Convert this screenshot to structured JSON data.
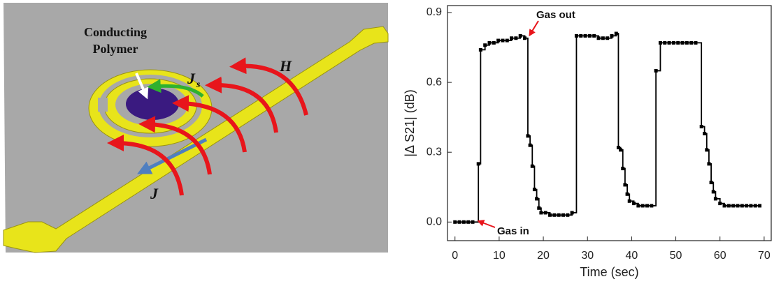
{
  "diagram": {
    "polymer_label": [
      "Conducting",
      "Polymer"
    ],
    "js_label": "J",
    "js_subscript": "s",
    "h_label": "H",
    "j_label": "J"
  },
  "chart_data": {
    "type": "line",
    "x_label": "Time (sec)",
    "y_label": "|Δ S21| (dB)",
    "annotations": [
      "Gas out",
      "Gas in"
    ],
    "xlim": [
      -1.7,
      71.6
    ],
    "xticks": [
      0,
      10,
      20,
      30,
      40,
      50,
      60,
      70
    ],
    "ylim": [
      -0.08,
      0.93
    ],
    "yticks": [
      {
        "value": 0,
        "label": "0.0"
      },
      0.3,
      0.6,
      0.9
    ],
    "series": [
      {
        "color": "#000000",
        "x": [
          0,
          1,
          2,
          3,
          4,
          5.3,
          5.8,
          6.8,
          7.8,
          8.8,
          9.8,
          10.8,
          11.8,
          12.8,
          13.8,
          14.8,
          15.8,
          16.5,
          17,
          17.5,
          18,
          18.5,
          19,
          19.5,
          20.5,
          21.5,
          22.5,
          23.5,
          24.5,
          25.5,
          26.5,
          27.5,
          28.5,
          29.5,
          30.5,
          31.5,
          32.5,
          33.5,
          34.5,
          35.5,
          36.5,
          37,
          37.5,
          38,
          38.5,
          39,
          39.5,
          40.5,
          41.5,
          42.5,
          43.5,
          44.5,
          45.5,
          46.5,
          47.5,
          48.5,
          49.5,
          50.5,
          51.5,
          52.5,
          53.5,
          54.5,
          55.8,
          56.5,
          57,
          57.5,
          58,
          58.5,
          59,
          60,
          61,
          62,
          63,
          64,
          65,
          66,
          67,
          68,
          69
        ],
        "values": [
          0,
          0,
          0,
          0,
          0,
          0.25,
          0.74,
          0.76,
          0.77,
          0.77,
          0.78,
          0.78,
          0.78,
          0.79,
          0.79,
          0.8,
          0.79,
          0.37,
          0.33,
          0.24,
          0.14,
          0.1,
          0.06,
          0.04,
          0.04,
          0.03,
          0.03,
          0.03,
          0.03,
          0.03,
          0.04,
          0.8,
          0.8,
          0.8,
          0.8,
          0.8,
          0.79,
          0.79,
          0.79,
          0.8,
          0.81,
          0.32,
          0.31,
          0.23,
          0.16,
          0.12,
          0.09,
          0.08,
          0.07,
          0.07,
          0.07,
          0.07,
          0.65,
          0.77,
          0.77,
          0.77,
          0.77,
          0.77,
          0.77,
          0.77,
          0.77,
          0.77,
          0.41,
          0.38,
          0.31,
          0.25,
          0.17,
          0.13,
          0.1,
          0.08,
          0.07,
          0.07,
          0.07,
          0.07,
          0.07,
          0.07,
          0.07,
          0.07,
          0.07
        ]
      }
    ]
  }
}
